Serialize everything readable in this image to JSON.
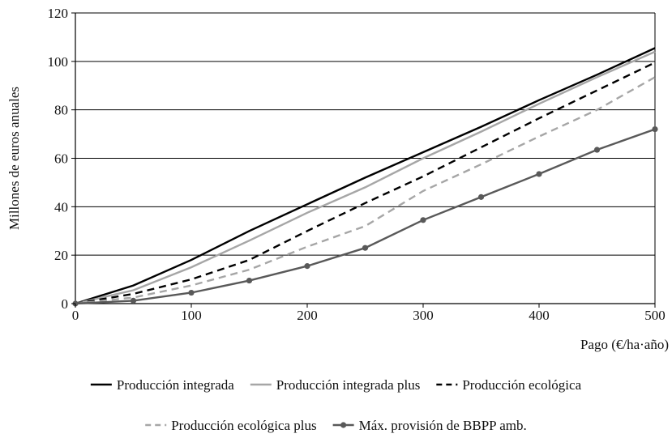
{
  "chart_data": {
    "type": "line",
    "xlabel": "Pago (€/ha·año)",
    "ylabel": "Millones de euros anuales",
    "xlim": [
      0,
      500
    ],
    "ylim": [
      0,
      120
    ],
    "x_ticks": [
      0,
      100,
      200,
      300,
      400,
      500
    ],
    "y_ticks": [
      0,
      20,
      40,
      60,
      80,
      100,
      120
    ],
    "grid": "horizontal",
    "legend": "bottom",
    "series": [
      {
        "name": "Producción integrada",
        "color": "#000000",
        "dash": "solid",
        "marker": "none",
        "x": [
          0,
          50,
          100,
          150,
          200,
          250,
          300,
          350,
          400,
          450,
          500
        ],
        "values": [
          0,
          7.5,
          18,
          30,
          41,
          52,
          62.5,
          73,
          84,
          94.5,
          105.5
        ]
      },
      {
        "name": "Producción integrada plus",
        "color": "#a6a6a6",
        "dash": "solid",
        "marker": "none",
        "x": [
          0,
          50,
          100,
          150,
          200,
          250,
          300,
          350,
          400,
          450,
          500
        ],
        "values": [
          0,
          5.5,
          15,
          26,
          37.5,
          48,
          60,
          71,
          82.5,
          93.5,
          104
        ]
      },
      {
        "name": "Producción ecológica",
        "color": "#000000",
        "dash": "dashed",
        "marker": "none",
        "x": [
          0,
          50,
          100,
          150,
          200,
          250,
          300,
          350,
          400,
          450,
          500
        ],
        "values": [
          0,
          4,
          10,
          18,
          30,
          41.5,
          52.5,
          64.5,
          76.5,
          88,
          99.5
        ]
      },
      {
        "name": "Producción ecológica plus",
        "color": "#a6a6a6",
        "dash": "dashed",
        "marker": "none",
        "x": [
          0,
          50,
          100,
          150,
          200,
          250,
          300,
          350,
          400,
          450,
          500
        ],
        "values": [
          0,
          2.5,
          7.5,
          14,
          23.5,
          32,
          46.5,
          57.5,
          69,
          80,
          93.5
        ]
      },
      {
        "name": "Máx. provisión de BBPP amb.",
        "color": "#595959",
        "dash": "solid",
        "marker": "circle",
        "x": [
          0,
          50,
          100,
          150,
          200,
          250,
          300,
          350,
          400,
          450,
          500
        ],
        "values": [
          0,
          1.2,
          4.5,
          9.5,
          15.5,
          23,
          34.5,
          44,
          53.5,
          63.5,
          72
        ]
      }
    ]
  }
}
